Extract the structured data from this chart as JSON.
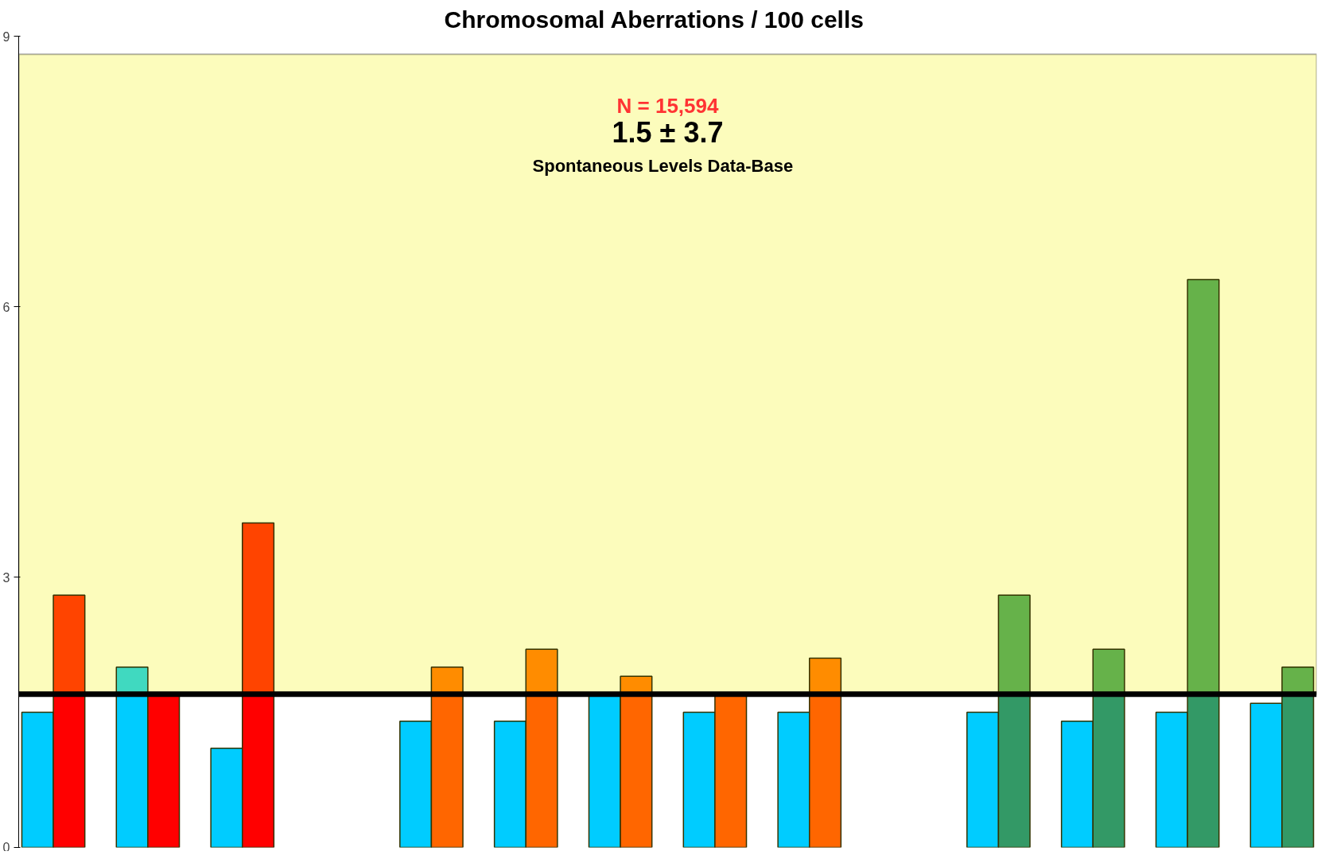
{
  "chart_data": {
    "type": "bar",
    "title": "Chromosomal  Aberrations  /  100  cells",
    "stacked": true,
    "categories": [
      null,
      null,
      null,
      null,
      null,
      null,
      null,
      null,
      null,
      null,
      null,
      null,
      null,
      null,
      null,
      null,
      null,
      null,
      null,
      null,
      null,
      null,
      null,
      null,
      null,
      null,
      null,
      null,
      null,
      null,
      null,
      null,
      null,
      null,
      null,
      null,
      null,
      null,
      null,
      null,
      null
    ],
    "series": [
      {
        "values": [
          1.5,
          1.7,
          null,
          1.7,
          1.7,
          null,
          1.1,
          1.7,
          null,
          null,
          null,
          null,
          1.4,
          1.7,
          null,
          1.4,
          1.7,
          null,
          1.7,
          1.7,
          null,
          1.5,
          1.7,
          null,
          1.5,
          1.7,
          null,
          null,
          null,
          null,
          1.5,
          1.7,
          null,
          1.4,
          1.7,
          null,
          1.5,
          1.7,
          null,
          1.6,
          1.7
        ],
        "colors": [
          "#00ccff",
          "#ff0000",
          "#ffffff",
          "#00ccff",
          "#ff0000",
          "#ffffff",
          "#00ccff",
          "#ff0000",
          "#ffffff",
          "#ffffff",
          "#ffffff",
          "#ffffff",
          "#00ccff",
          "#ff6600",
          "#ffffff",
          "#00ccff",
          "#ff6600",
          "#ffffff",
          "#00ccff",
          "#ff6600",
          "#ffffff",
          "#00ccff",
          "#ff6600",
          "#ffffff",
          "#00ccff",
          "#ff6600",
          "#ffffff",
          "#ffffff",
          "#ffffff",
          "#ffffff",
          "#00ccff",
          "#339966",
          "#ffffff",
          "#00ccff",
          "#339966",
          "#ffffff",
          "#00ccff",
          "#339966",
          "#ffffff",
          "#00ccff",
          "#339966"
        ]
      },
      {
        "values": [
          null,
          1.1,
          null,
          0.3,
          null,
          null,
          null,
          1.9,
          null,
          null,
          null,
          null,
          null,
          0.3,
          null,
          null,
          0.5,
          null,
          null,
          0.2,
          null,
          null,
          null,
          null,
          null,
          0.4,
          null,
          null,
          null,
          null,
          null,
          1.1,
          null,
          null,
          0.5,
          null,
          null,
          4.6,
          null,
          null,
          0.3
        ],
        "colors": [
          "#ffffff",
          "#ff4400",
          "#ffffff",
          "#40d9c0",
          "#ffffff",
          "#ffffff",
          "#ffffff",
          "#ff4400",
          "#ffffff",
          "#ffffff",
          "#ffffff",
          "#ffffff",
          "#ffffff",
          "#ff8c00",
          "#ffffff",
          "#ffffff",
          "#ff8c00",
          "#ffffff",
          "#ffffff",
          "#ff8c00",
          "#ffffff",
          "#ffffff",
          "#ff8c00",
          "#ffffff",
          "#ffffff",
          "#ff8c00",
          "#ffffff",
          "#ffffff",
          "#ffffff",
          "#ffffff",
          "#ffffff",
          "#66b24a",
          "#ffffff",
          "#ffffff",
          "#66b24a",
          "#ffffff",
          "#ffffff",
          "#66b24a",
          "#ffffff",
          "#ffffff",
          "#66b24a"
        ]
      }
    ],
    "ylim": [
      0,
      9
    ],
    "yticks": [
      0,
      3,
      6,
      9
    ],
    "tick_labels": "y",
    "grid": false,
    "bands": [
      {
        "axis": "y",
        "from": 1.7,
        "to": 8.8,
        "color": "#fcfcbc"
      }
    ],
    "ref_lines": [
      {
        "axis": "y",
        "value": 1.7,
        "color": "#000000"
      }
    ],
    "annotations": [
      "N = 15,594",
      "1.5 ± 3.7",
      "Spontaneous  Levels  Data-Base"
    ]
  }
}
